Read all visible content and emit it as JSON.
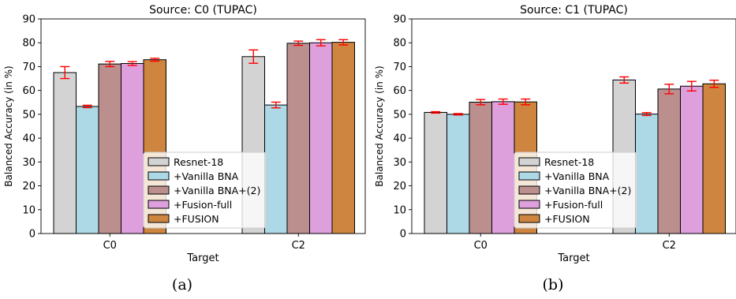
{
  "captions": [
    "(a)",
    "(b)"
  ],
  "chart_data": [
    {
      "type": "bar",
      "title": "Source: C0 (TUPAC)",
      "xlabel": "Target",
      "ylabel": "Balanced Accuracy (in %)",
      "ylim": [
        0,
        90
      ],
      "yticks": [
        0,
        10,
        20,
        30,
        40,
        50,
        60,
        70,
        80,
        90
      ],
      "categories": [
        "C0",
        "C2"
      ],
      "legend_position": "lower-right",
      "series": [
        {
          "name": "Resnet-18",
          "color": "#d3d3d3",
          "values": [
            67.5,
            74.2
          ],
          "errors": [
            2.5,
            2.8
          ]
        },
        {
          "name": "+Vanilla BNA",
          "color": "#add8e6",
          "values": [
            53.3,
            53.9
          ],
          "errors": [
            0.5,
            1.2
          ]
        },
        {
          "name": "+Vanilla BNA+(2)",
          "color": "#bc8f8f",
          "values": [
            71.1,
            79.8
          ],
          "errors": [
            1.1,
            0.9
          ]
        },
        {
          "name": "+Fusion-full",
          "color": "#dda0dd",
          "values": [
            71.3,
            80.0
          ],
          "errors": [
            0.8,
            1.3
          ]
        },
        {
          "name": "+FUSION",
          "color": "#cd853f",
          "values": [
            72.9,
            80.2
          ],
          "errors": [
            0.6,
            1.1
          ]
        }
      ],
      "error_color": "#ff0000"
    },
    {
      "type": "bar",
      "title": "Source: C1 (TUPAC)",
      "xlabel": "Target",
      "ylabel": "Balanced Accuracy (in %)",
      "ylim": [
        0,
        90
      ],
      "yticks": [
        0,
        10,
        20,
        30,
        40,
        50,
        60,
        70,
        80,
        90
      ],
      "categories": [
        "C0",
        "C2"
      ],
      "legend_position": "lower-right",
      "series": [
        {
          "name": "Resnet-18",
          "color": "#d3d3d3",
          "values": [
            50.8,
            64.4
          ],
          "errors": [
            0.3,
            1.3
          ]
        },
        {
          "name": "+Vanilla BNA",
          "color": "#add8e6",
          "values": [
            50.0,
            50.1
          ],
          "errors": [
            0.3,
            0.6
          ]
        },
        {
          "name": "+Vanilla BNA+(2)",
          "color": "#bc8f8f",
          "values": [
            55.1,
            60.6
          ],
          "errors": [
            1.1,
            2.0
          ]
        },
        {
          "name": "+Fusion-full",
          "color": "#dda0dd",
          "values": [
            55.3,
            61.8
          ],
          "errors": [
            1.1,
            2.0
          ]
        },
        {
          "name": "+FUSION",
          "color": "#cd853f",
          "values": [
            55.2,
            62.8
          ],
          "errors": [
            1.2,
            1.5
          ]
        }
      ],
      "error_color": "#ff0000"
    }
  ]
}
